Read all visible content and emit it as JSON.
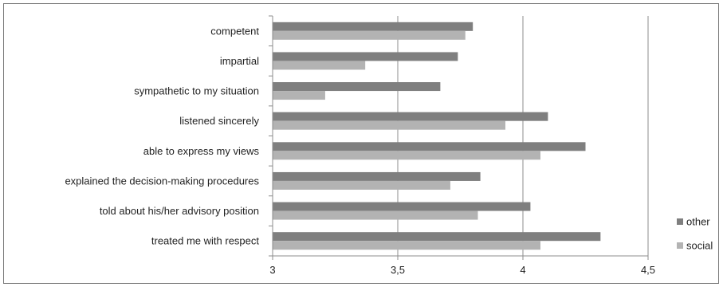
{
  "chart_data": {
    "type": "bar",
    "orientation": "horizontal",
    "categories": [
      "competent",
      "impartial",
      "sympathetic to my situation",
      "listened sincerely",
      "able to express my views",
      "explained the decision-making procedures",
      "told about his/her advisory position",
      "treated me with respect"
    ],
    "series": [
      {
        "name": "other",
        "color": "#7f7f7f",
        "values": [
          3.8,
          3.74,
          3.67,
          4.1,
          4.25,
          3.83,
          4.03,
          4.31
        ]
      },
      {
        "name": "social",
        "color": "#b3b3b3",
        "values": [
          3.77,
          3.37,
          3.21,
          3.93,
          4.07,
          3.71,
          3.82,
          4.07
        ]
      }
    ],
    "xlim": [
      3,
      4.5
    ],
    "ticks": [
      3,
      3.5,
      4,
      4.5
    ],
    "tick_labels": [
      "3",
      "3,5",
      "4",
      "4,5"
    ],
    "grid": true,
    "legend_position": "right"
  }
}
